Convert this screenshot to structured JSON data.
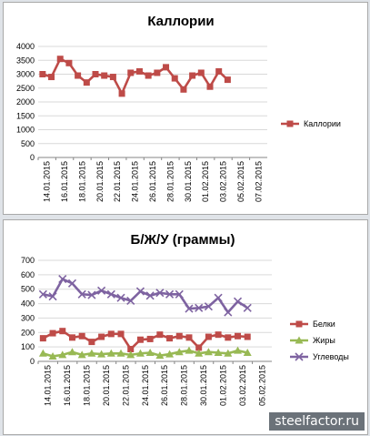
{
  "watermark": "steelfactor.ru",
  "chart_data": [
    {
      "type": "line",
      "title": "Каллории",
      "xlabel": "",
      "ylabel": "",
      "ylim": [
        0,
        4000
      ],
      "yticks": [
        0,
        500,
        1000,
        1500,
        2000,
        2500,
        3000,
        3500,
        4000
      ],
      "x_tick_labels": [
        "14.01.2015",
        "16.01.2015",
        "18.01.2015",
        "20.01.2015",
        "22.01.2015",
        "24.01.2015",
        "26.01.2015",
        "28.01.2015",
        "30.01.2015",
        "01.02.2015",
        "03.02.2015",
        "05.02.2015",
        "07.02.2015"
      ],
      "legend_position": "right",
      "grid": true,
      "series": [
        {
          "name": "Каллории",
          "color": "#be4b48",
          "marker": "square",
          "values": [
            3000,
            2900,
            3550,
            3400,
            2950,
            2700,
            3000,
            2950,
            2900,
            2300,
            3050,
            3100,
            2950,
            3050,
            3250,
            2850,
            2450,
            2950,
            3050,
            2550,
            3100,
            2800
          ]
        }
      ]
    },
    {
      "type": "line",
      "title": "Б/Ж/У (граммы)",
      "xlabel": "",
      "ylabel": "",
      "ylim": [
        0,
        700
      ],
      "yticks": [
        0,
        100,
        200,
        300,
        400,
        500,
        600,
        700
      ],
      "x_tick_labels": [
        "14.01.2015",
        "16.01.2015",
        "18.01.2015",
        "20.01.2015",
        "22.01.2015",
        "24.01.2015",
        "26.01.2015",
        "28.01.2015",
        "30.01.2015",
        "01.02.2015",
        "03.02.2015",
        "05.02.2015"
      ],
      "legend_position": "right",
      "grid": true,
      "series": [
        {
          "name": "Белки",
          "color": "#be4b48",
          "marker": "square",
          "values": [
            160,
            195,
            210,
            165,
            175,
            135,
            170,
            190,
            190,
            85,
            150,
            155,
            185,
            160,
            175,
            165,
            95,
            170,
            185,
            165,
            175,
            170
          ]
        },
        {
          "name": "Жиры",
          "color": "#98b954",
          "marker": "triangle",
          "values": [
            55,
            35,
            45,
            65,
            45,
            55,
            50,
            55,
            55,
            45,
            55,
            60,
            40,
            50,
            65,
            75,
            55,
            65,
            60,
            55,
            75,
            60
          ]
        },
        {
          "name": "Углеводы",
          "color": "#7e63a1",
          "marker": "x",
          "values": [
            465,
            450,
            570,
            540,
            465,
            460,
            490,
            465,
            440,
            420,
            485,
            455,
            475,
            465,
            465,
            365,
            370,
            380,
            440,
            340,
            415,
            370
          ]
        }
      ]
    }
  ]
}
